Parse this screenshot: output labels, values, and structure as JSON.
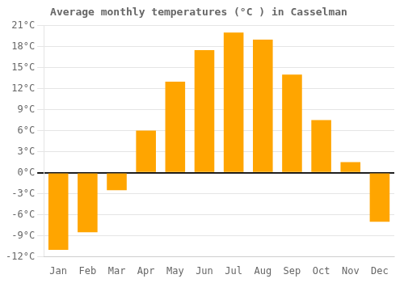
{
  "chart_data": {
    "type": "bar",
    "title": "Average monthly temperatures (°C ) in Casselman",
    "categories": [
      "Jan",
      "Feb",
      "Mar",
      "Apr",
      "May",
      "Jun",
      "Jul",
      "Aug",
      "Sep",
      "Oct",
      "Nov",
      "Dec"
    ],
    "values": [
      -11,
      -8.5,
      -2.5,
      6,
      13,
      17.5,
      20,
      19,
      14,
      7.5,
      1.5,
      -7
    ],
    "color": "#FFA500",
    "ylim": [
      -12,
      21
    ],
    "yticks": [
      {
        "value": -12,
        "label": "-12°C"
      },
      {
        "value": -9,
        "label": "-9°C"
      },
      {
        "value": -6,
        "label": "-6°C"
      },
      {
        "value": -3,
        "label": "-3°C"
      },
      {
        "value": 0,
        "label": "0°C"
      },
      {
        "value": 3,
        "label": "3°C"
      },
      {
        "value": 6,
        "label": "6°C"
      },
      {
        "value": 9,
        "label": "9°C"
      },
      {
        "value": 12,
        "label": "12°C"
      },
      {
        "value": 15,
        "label": "15°C"
      },
      {
        "value": 18,
        "label": "18°C"
      },
      {
        "value": 21,
        "label": "21°C"
      }
    ],
    "grid": true
  }
}
